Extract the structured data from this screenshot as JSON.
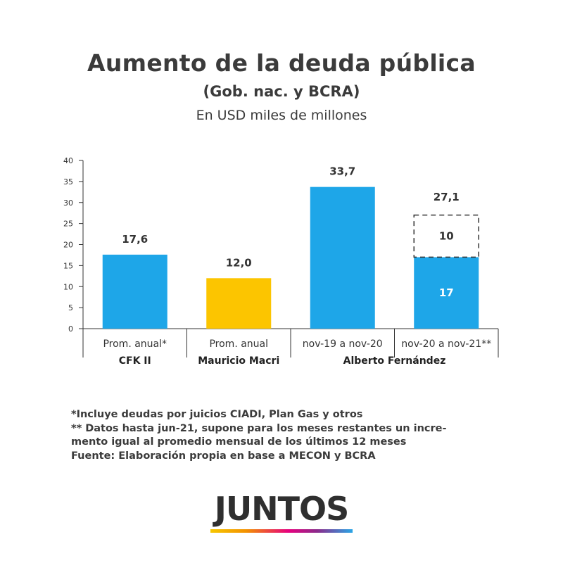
{
  "title": "Aumento de la deuda pública",
  "subtitle": "(Gob. nac. y BCRA)",
  "units": "En USD miles de millones",
  "chart_data": {
    "type": "bar",
    "title": "Aumento de la deuda pública",
    "subtitle": "(Gob. nac. y BCRA)",
    "ylabel": "En USD miles de millones",
    "ylim": [
      0,
      40
    ],
    "yticks": [
      0,
      5,
      10,
      15,
      20,
      25,
      30,
      35,
      40
    ],
    "categories": [
      "Prom. anual*",
      "Prom. anual",
      "nov-19 a nov-20",
      "nov-20 a nov-21**"
    ],
    "groups": [
      {
        "label": "CFK II",
        "categories": [
          0
        ]
      },
      {
        "label": "Mauricio Macri",
        "categories": [
          1
        ]
      },
      {
        "label": "Alberto Fernández",
        "categories": [
          2,
          3
        ]
      }
    ],
    "bars": [
      {
        "category": "Prom. anual*",
        "value": 17.6,
        "label": "17,6",
        "color": "#1ea6e8"
      },
      {
        "category": "Prom. anual",
        "value": 12.0,
        "label": "12,0",
        "color": "#fcc500"
      },
      {
        "category": "nov-19 a nov-20",
        "value": 33.7,
        "label": "33,7",
        "color": "#1ea6e8"
      },
      {
        "category": "nov-20 a nov-21**",
        "value": 27.1,
        "label": "27,1",
        "color": "#1ea6e8",
        "segments": [
          {
            "value": 17,
            "label": "17",
            "style": "solid",
            "color": "#1ea6e8"
          },
          {
            "value": 10,
            "label": "10",
            "style": "dashed",
            "color": "#333333"
          }
        ]
      }
    ]
  },
  "notes": [
    "*Incluye deudas por juicios CIADI, Plan Gas y otros",
    "** Datos hasta jun-21, supone para los meses restantes un incre-",
    "mento igual al promedio mensual de los últimos 12 meses",
    "Fuente: Elaboración propia en base a MECON y BCRA"
  ],
  "logo": {
    "text": "JUNTOS"
  }
}
